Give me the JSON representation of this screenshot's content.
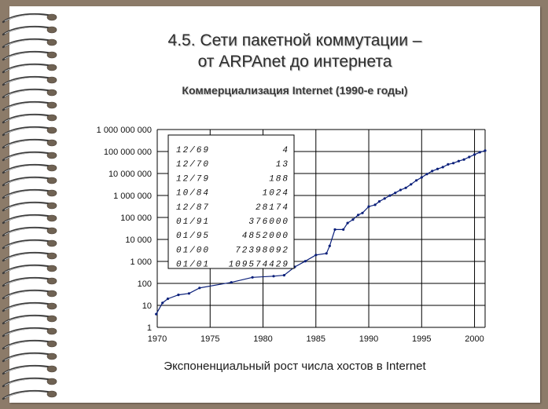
{
  "slide": {
    "title_line1": "4.5. Сети пакетной коммутации –",
    "title_line2": "от ARPAnet до интернета",
    "subtitle": "Коммерциализация Internet (1990-е годы)",
    "caption": "Экспоненциальный рост числа хостов в Internet"
  },
  "chart_data": {
    "type": "line",
    "title": "",
    "xlabel": "",
    "ylabel": "",
    "log_y": true,
    "xlim": [
      1970,
      2001
    ],
    "ylim": [
      1,
      1000000000
    ],
    "x_ticks": [
      "1970",
      "1975",
      "1980",
      "1985",
      "1990",
      "1995",
      "2000"
    ],
    "y_ticks": [
      "1",
      "10",
      "100",
      "1 000",
      "10 000",
      "100 000",
      "1 000 000",
      "10 000 000",
      "100 000 000",
      "1 000 000 000"
    ],
    "grid": true,
    "series": [
      {
        "x": [
          1969.9,
          1970.5,
          1971.0,
          1972.0,
          1973.0,
          1974.0,
          1977.0,
          1979.0,
          1981.0,
          1982.0,
          1983.0,
          1984.0,
          1985.0,
          1986.0,
          1986.3,
          1986.8,
          1987.6,
          1988.0,
          1988.5,
          1989.0,
          1989.4,
          1990.0,
          1990.6,
          1991.0,
          1991.5,
          1992.0,
          1992.5,
          1993.0,
          1993.5,
          1994.0,
          1994.5,
          1995.0,
          1995.5,
          1996.0,
          1996.5,
          1997.0,
          1997.5,
          1998.0,
          1998.5,
          1999.0,
          1999.5,
          2000.0,
          2000.5,
          2001.0
        ],
        "values": [
          4,
          13,
          20,
          30,
          35,
          62,
          111,
          188,
          213,
          235,
          562,
          1024,
          1961,
          2308,
          5089,
          28174,
          28174,
          56000,
          80000,
          130000,
          160000,
          313000,
          376000,
          535000,
          727000,
          992000,
          1313000,
          1776000,
          2217000,
          3212000,
          4852000,
          6642000,
          9472000,
          12881000,
          16146000,
          19540000,
          26053000,
          29670000,
          36739000,
          43230000,
          56218000,
          72398092,
          93047785,
          109574429
        ]
      }
    ],
    "table": {
      "dates": [
        "12/69",
        "12/70",
        "12/79",
        "10/84",
        "12/87",
        "01/91",
        "01/95",
        "01/00",
        "01/01"
      ],
      "hosts": [
        "4",
        "13",
        "188",
        "1024",
        "28174",
        "376000",
        "4852000",
        "72398092",
        "109574429"
      ]
    }
  }
}
